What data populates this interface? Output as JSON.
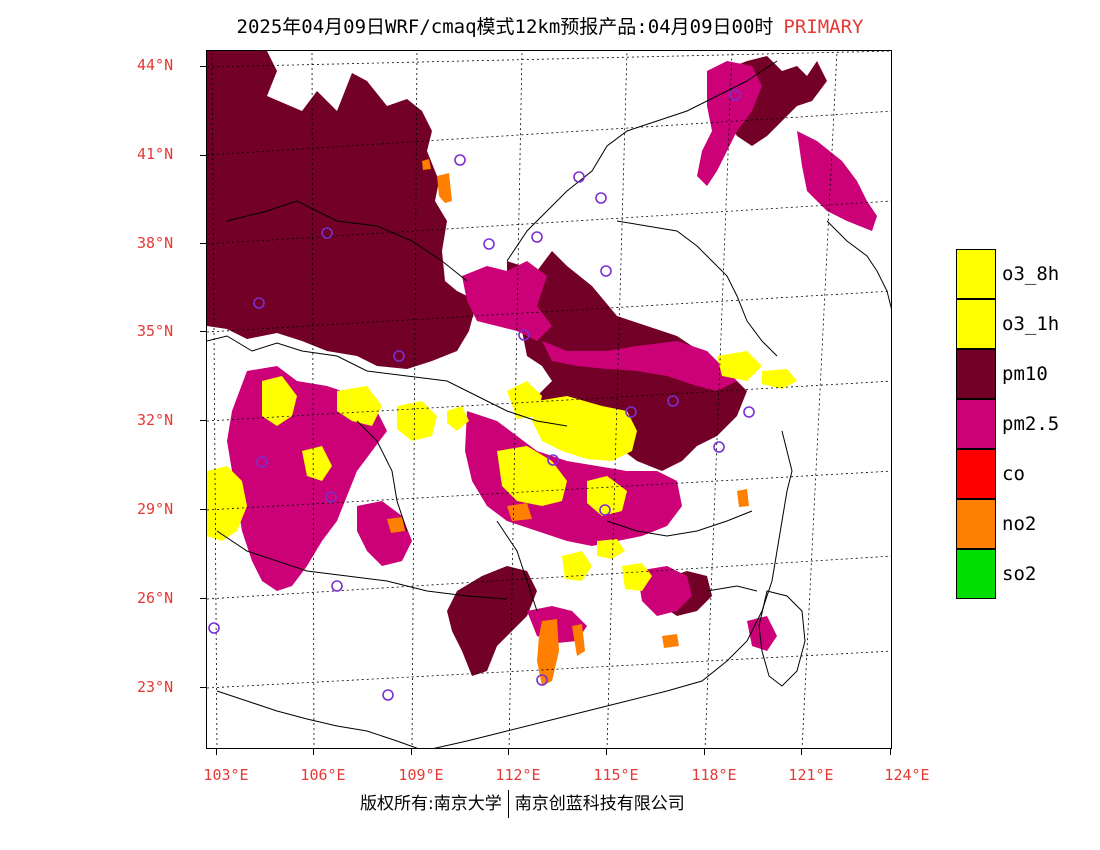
{
  "title": {
    "main": "2025年04月09日WRF/cmaq模式12km预报产品:04月09日00时",
    "tag": "PRIMARY"
  },
  "axes": {
    "lat_labels": [
      "44°N",
      "41°N",
      "38°N",
      "35°N",
      "32°N",
      "29°N",
      "26°N",
      "23°N"
    ],
    "lon_labels": [
      "103°E",
      "106°E",
      "109°E",
      "112°E",
      "115°E",
      "118°E",
      "121°E",
      "124°E"
    ]
  },
  "legend": [
    {
      "label": "o3_8h",
      "color": "#ffff00"
    },
    {
      "label": "o3_1h",
      "color": "#ffff00"
    },
    {
      "label": "pm10",
      "color": "#730026"
    },
    {
      "label": "pm2.5",
      "color": "#cc0077"
    },
    {
      "label": "co",
      "color": "#ff0000"
    },
    {
      "label": "no2",
      "color": "#ff7f00"
    },
    {
      "label": "so2",
      "color": "#00dd00"
    }
  ],
  "copyright": {
    "left": "版权所有:南京大学",
    "right": "南京创蓝科技有限公司"
  },
  "colors": {
    "accent_red": "#e53935",
    "station_marker": "#7b2fd0"
  }
}
